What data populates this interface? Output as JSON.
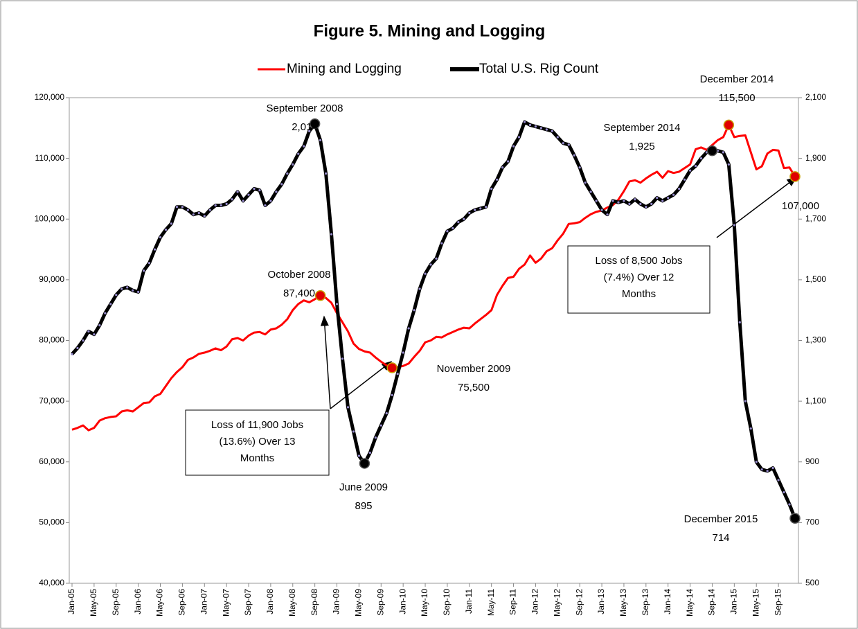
{
  "chart_data": {
    "type": "line",
    "title": "Figure 5. Mining and Logging",
    "categories": [
      "Jan-05",
      null,
      null,
      null,
      "May-05",
      null,
      null,
      null,
      "Sep-05",
      null,
      null,
      null,
      "Jan-06",
      null,
      null,
      null,
      "May-06",
      null,
      null,
      null,
      "Sep-06",
      null,
      null,
      null,
      "Jan-07",
      null,
      null,
      null,
      "May-07",
      null,
      null,
      null,
      "Sep-07",
      null,
      null,
      null,
      "Jan-08",
      null,
      null,
      null,
      "May-08",
      null,
      null,
      null,
      "Sep-08",
      null,
      null,
      null,
      "Jan-09",
      null,
      null,
      null,
      "May-09",
      null,
      null,
      null,
      "Sep-09",
      null,
      null,
      null,
      "Jan-10",
      null,
      null,
      null,
      "May-10",
      null,
      null,
      null,
      "Sep-10",
      null,
      null,
      null,
      "Jan-11",
      null,
      null,
      null,
      "May-11",
      null,
      null,
      null,
      "Sep-11",
      null,
      null,
      null,
      "Jan-12",
      null,
      null,
      null,
      "May-12",
      null,
      null,
      null,
      "Sep-12",
      null,
      null,
      null,
      "Jan-13",
      null,
      null,
      null,
      "May-13",
      null,
      null,
      null,
      "Sep-13",
      null,
      null,
      null,
      "Jan-14",
      null,
      null,
      null,
      "May-14",
      null,
      null,
      null,
      "Sep-14",
      null,
      null,
      null,
      "Jan-15",
      null,
      null,
      null,
      "May-15",
      null,
      null,
      null,
      "Sep-15",
      null,
      null,
      null
    ],
    "series": [
      {
        "name": "Mining and Logging",
        "color": "#ff0000",
        "values": [
          65300,
          65600,
          66000,
          65200,
          65600,
          66800,
          67200,
          67400,
          67500,
          68300,
          68500,
          68300,
          69000,
          69700,
          69800,
          70800,
          71200,
          72500,
          73800,
          74800,
          75600,
          76800,
          77200,
          77800,
          78000,
          78300,
          78700,
          78400,
          79000,
          80200,
          80400,
          80000,
          80800,
          81300,
          81400,
          81000,
          81800,
          82000,
          82600,
          83500,
          85000,
          86000,
          86600,
          86300,
          86800,
          87400,
          87000,
          86200,
          84500,
          83000,
          81500,
          79500,
          78600,
          78200,
          78000,
          77200,
          76500,
          75900,
          75500,
          75600,
          75800,
          76200,
          77300,
          78300,
          79700,
          80000,
          80600,
          80500,
          81000,
          81400,
          81800,
          82100,
          82000,
          82800,
          83500,
          84200,
          85000,
          87500,
          89000,
          90300,
          90500,
          91800,
          92500,
          94000,
          92800,
          93500,
          94700,
          95200,
          96500,
          97600,
          99200,
          99300,
          99500,
          100200,
          100800,
          101200,
          101400,
          101900,
          102300,
          103200,
          104600,
          106200,
          106400,
          106000,
          106700,
          107300,
          107800,
          106800,
          107900,
          107600,
          107800,
          108400,
          109000,
          111500,
          111800,
          111400,
          112200,
          113000,
          113500,
          115500,
          113500,
          113700,
          113800,
          111000,
          108200,
          108700,
          110800,
          111400,
          111300,
          108400,
          108500,
          107000
        ]
      },
      {
        "name": "Total U.S. Rig Count",
        "color": "#000000",
        "axis": "y2",
        "values": [
          1255,
          1275,
          1300,
          1330,
          1320,
          1350,
          1390,
          1420,
          1450,
          1470,
          1475,
          1465,
          1460,
          1530,
          1555,
          1600,
          1640,
          1665,
          1685,
          1740,
          1740,
          1730,
          1715,
          1720,
          1710,
          1730,
          1745,
          1745,
          1750,
          1765,
          1790,
          1760,
          1780,
          1800,
          1795,
          1745,
          1760,
          1790,
          1815,
          1850,
          1880,
          1915,
          1940,
          1990,
          2014,
          1960,
          1850,
          1650,
          1420,
          1240,
          1080,
          1000,
          920,
          895,
          930,
          980,
          1020,
          1060,
          1120,
          1190,
          1260,
          1340,
          1400,
          1470,
          1520,
          1550,
          1570,
          1620,
          1660,
          1670,
          1690,
          1700,
          1720,
          1730,
          1735,
          1740,
          1800,
          1830,
          1870,
          1890,
          1940,
          1970,
          2020,
          2010,
          2005,
          2000,
          1995,
          1990,
          1970,
          1950,
          1945,
          1910,
          1870,
          1820,
          1790,
          1760,
          1730,
          1715,
          1760,
          1755,
          1760,
          1750,
          1765,
          1750,
          1740,
          1750,
          1770,
          1760,
          1770,
          1780,
          1800,
          1830,
          1860,
          1875,
          1900,
          1920,
          1925,
          1925,
          1920,
          1880,
          1680,
          1360,
          1100,
          1010,
          900,
          875,
          870,
          880,
          840,
          800,
          760,
          714
        ]
      }
    ],
    "ylim": [
      40000,
      120000
    ],
    "yticks": [
      {
        "value": 40000,
        "label": "40,000"
      },
      {
        "value": 50000,
        "label": "50,000"
      },
      {
        "value": 60000,
        "label": "60,000"
      },
      {
        "value": 70000,
        "label": "70,000"
      },
      {
        "value": 80000,
        "label": "80,000"
      },
      {
        "value": 90000,
        "label": "90,000"
      },
      {
        "value": 100000,
        "label": "100,000"
      },
      {
        "value": 110000,
        "label": "110,000"
      },
      {
        "value": 120000,
        "label": "120,000"
      }
    ],
    "y2lim": [
      500,
      2100
    ],
    "y2ticks": [
      500,
      700,
      900,
      {
        "value": 1100,
        "label": "1,100"
      },
      {
        "value": 1300,
        "label": "1,300"
      },
      {
        "value": 1500,
        "label": "1,500"
      },
      {
        "value": 1700,
        "label": "1,700"
      },
      {
        "value": 1900,
        "label": "1,900"
      },
      {
        "value": 2100,
        "label": "2,100"
      }
    ],
    "grid": false,
    "legend": "top",
    "annotations": [
      {
        "lines": [
          "September 2008",
          "2,014"
        ]
      },
      {
        "lines": [
          "October 2008",
          "87,400"
        ]
      },
      {
        "lines": [
          "November 2009",
          "75,500"
        ]
      },
      {
        "lines": [
          "June 2009",
          "895"
        ]
      },
      {
        "lines": [
          "September 2014",
          "1,925"
        ]
      },
      {
        "lines": [
          "December 2014",
          "115,500"
        ]
      },
      {
        "lines": [
          "December 2015",
          "714"
        ]
      },
      {
        "lines": [
          "107,000"
        ]
      }
    ],
    "boxes": [
      {
        "lines": [
          "Loss of 11,900 Jobs",
          "(13.6%) Over 13",
          "Months"
        ]
      },
      {
        "lines": [
          "Loss of 8,500 Jobs",
          "(7.4%) Over 12",
          "Months"
        ]
      }
    ]
  }
}
